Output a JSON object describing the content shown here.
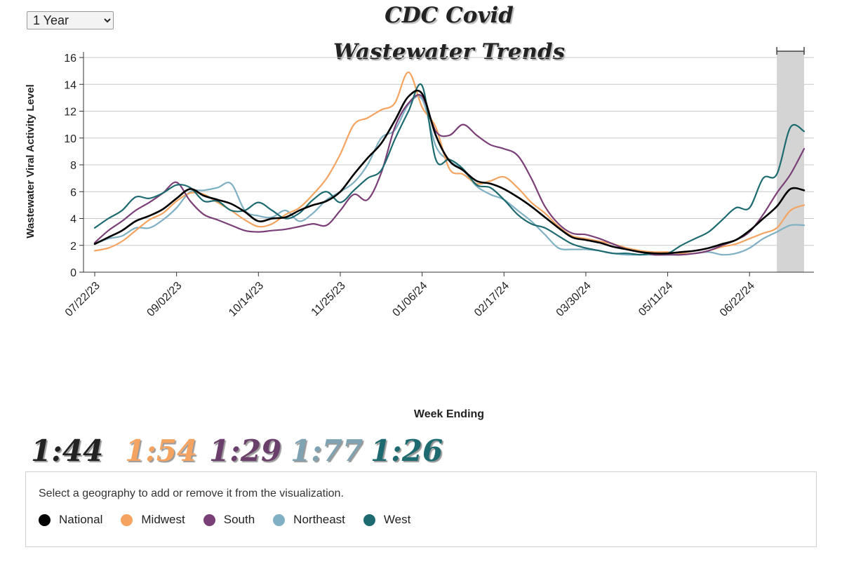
{
  "controls": {
    "range_selected": "1 Year",
    "range_options": [
      "1 Year"
    ]
  },
  "title_lines": [
    "CDC Covid",
    "Wastewater Trends"
  ],
  "ratios": [
    {
      "label": "1:44",
      "color": "#222222"
    },
    {
      "label": "1:54",
      "color": "#f4a460"
    },
    {
      "label": "1:29",
      "color": "#6b3f6b"
    },
    {
      "label": "1:77",
      "color": "#7fa3b3"
    },
    {
      "label": "1:26",
      "color": "#1d6b70"
    }
  ],
  "legend": {
    "hint": "Select a geography to add or remove it from the visualization."
  },
  "chart_data": {
    "type": "line",
    "title": "CDC Covid Wastewater Trends",
    "xlabel": "Week Ending",
    "ylabel": "Wastewater Viral Activity Level",
    "ylim": [
      0,
      16
    ],
    "yticks": [
      0,
      2,
      4,
      6,
      8,
      10,
      12,
      14,
      16
    ],
    "grid": true,
    "x_start_index": 0,
    "x_end_index": 52,
    "x_tick_indices": [
      0,
      6,
      12,
      18,
      24,
      30,
      36,
      42,
      48
    ],
    "x_tick_labels": [
      "07/22/23",
      "09/02/23",
      "10/14/23",
      "11/25/23",
      "01/06/24",
      "02/17/24",
      "03/30/24",
      "05/11/24",
      "06/22/24"
    ],
    "highlight_range_indices": [
      50.0,
      52.0
    ],
    "series": [
      {
        "name": "National",
        "color": "#000000",
        "values": [
          2.1,
          2.6,
          3.1,
          3.8,
          4.2,
          4.7,
          5.5,
          6.2,
          5.7,
          5.4,
          5.1,
          4.5,
          3.8,
          4.0,
          4.1,
          4.6,
          5.0,
          5.3,
          6.0,
          7.3,
          8.5,
          9.6,
          11.3,
          13.1,
          13.3,
          10.2,
          8.3,
          7.6,
          6.8,
          6.6,
          6.2,
          5.6,
          4.9,
          4.1,
          3.3,
          2.6,
          2.4,
          2.2,
          1.9,
          1.7,
          1.5,
          1.4,
          1.4,
          1.5,
          1.6,
          1.8,
          2.1,
          2.4,
          3.1,
          4.0,
          4.9,
          6.2,
          6.1
        ]
      },
      {
        "name": "Midwest",
        "color": "#f4a460",
        "values": [
          1.6,
          1.8,
          2.3,
          3.1,
          3.9,
          4.4,
          5.3,
          5.9,
          5.8,
          5.2,
          4.6,
          3.9,
          3.4,
          3.6,
          4.3,
          4.8,
          5.8,
          7.0,
          8.8,
          11.0,
          11.5,
          12.1,
          12.6,
          14.9,
          12.3,
          10.8,
          7.7,
          7.3,
          6.6,
          6.8,
          7.1,
          6.3,
          5.2,
          4.4,
          3.4,
          2.7,
          2.5,
          2.3,
          2.1,
          1.8,
          1.6,
          1.5,
          1.5,
          1.4,
          1.4,
          1.6,
          1.9,
          2.1,
          2.5,
          2.9,
          3.3,
          4.6,
          5.0
        ]
      },
      {
        "name": "South",
        "color": "#7b3f78",
        "values": [
          2.2,
          3.1,
          3.8,
          4.6,
          5.2,
          5.9,
          6.7,
          5.3,
          4.3,
          3.9,
          3.5,
          3.1,
          3.0,
          3.1,
          3.2,
          3.4,
          3.6,
          3.5,
          4.6,
          5.8,
          5.4,
          7.4,
          10.8,
          12.6,
          13.1,
          10.5,
          10.2,
          11.0,
          10.2,
          9.5,
          9.2,
          8.7,
          7.0,
          4.9,
          3.6,
          2.9,
          2.8,
          2.5,
          2.1,
          1.7,
          1.5,
          1.3,
          1.3,
          1.3,
          1.4,
          1.6,
          2.0,
          2.4,
          3.0,
          4.3,
          5.9,
          7.3,
          9.2
        ]
      },
      {
        "name": "Northeast",
        "color": "#7fb0c3",
        "values": [
          2.1,
          2.5,
          2.7,
          3.3,
          3.3,
          3.9,
          4.8,
          6.0,
          6.1,
          6.3,
          6.6,
          4.6,
          4.2,
          4.1,
          4.6,
          3.8,
          4.4,
          5.4,
          6.0,
          6.7,
          8.0,
          10.0,
          10.6,
          12.5,
          12.9,
          9.4,
          8.3,
          7.6,
          6.4,
          5.8,
          5.4,
          4.6,
          3.8,
          2.8,
          1.8,
          1.7,
          1.7,
          1.6,
          1.4,
          1.3,
          1.3,
          1.3,
          1.3,
          1.3,
          1.4,
          1.5,
          1.3,
          1.4,
          1.8,
          2.5,
          3.0,
          3.5,
          3.5
        ]
      },
      {
        "name": "West",
        "color": "#1d6b70",
        "values": [
          3.3,
          4.0,
          4.6,
          5.6,
          5.5,
          5.9,
          6.5,
          6.3,
          5.3,
          5.3,
          4.6,
          4.6,
          5.2,
          4.6,
          4.0,
          4.4,
          5.4,
          6.0,
          5.2,
          6.1,
          7.0,
          7.6,
          9.9,
          12.0,
          13.9,
          8.4,
          8.4,
          7.7,
          6.5,
          6.3,
          5.4,
          4.3,
          3.6,
          3.3,
          2.7,
          2.1,
          1.8,
          1.6,
          1.4,
          1.4,
          1.3,
          1.4,
          1.4,
          2.0,
          2.5,
          3.0,
          3.9,
          4.8,
          4.8,
          7.0,
          7.3,
          10.8,
          10.5
        ]
      }
    ]
  }
}
